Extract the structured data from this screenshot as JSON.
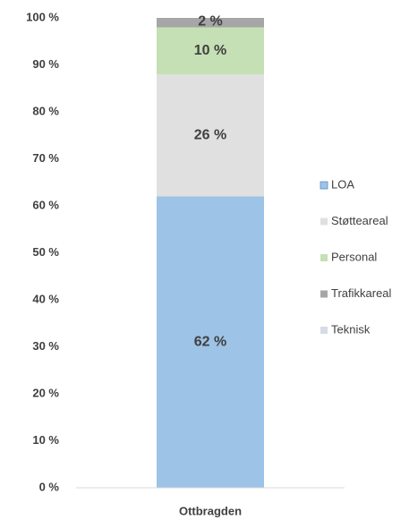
{
  "chart_data": {
    "type": "stacked_bar",
    "categories": [
      "Ottbragden"
    ],
    "series": [
      {
        "name": "LOA",
        "color": "#9dc3e6",
        "values": [
          62
        ],
        "value_labels": [
          "62 %"
        ]
      },
      {
        "name": "Støtteareal",
        "color": "#e0e0e0",
        "values": [
          26
        ],
        "value_labels": [
          "26 %"
        ]
      },
      {
        "name": "Personal",
        "color": "#c5e0b4",
        "values": [
          10
        ],
        "value_labels": [
          "10 %"
        ]
      },
      {
        "name": "Trafikkareal",
        "color": "#a6a6a6",
        "values": [
          2
        ],
        "value_labels": [
          "2 %"
        ]
      },
      {
        "name": "Teknisk",
        "color": "#d6dce5",
        "values": [
          0
        ]
      }
    ],
    "ylim": [
      0,
      100
    ],
    "yticks": [
      {
        "value": 0,
        "label": "0 %"
      },
      {
        "value": 10,
        "label": "10 %"
      },
      {
        "value": 20,
        "label": "20 %"
      },
      {
        "value": 30,
        "label": "30 %"
      },
      {
        "value": 40,
        "label": "40 %"
      },
      {
        "value": 50,
        "label": "50 %"
      },
      {
        "value": 60,
        "label": "60 %"
      },
      {
        "value": 70,
        "label": "70 %"
      },
      {
        "value": 80,
        "label": "80 %"
      },
      {
        "value": 90,
        "label": "90 %"
      },
      {
        "value": 100,
        "label": "100 %"
      }
    ],
    "legend": "right"
  }
}
